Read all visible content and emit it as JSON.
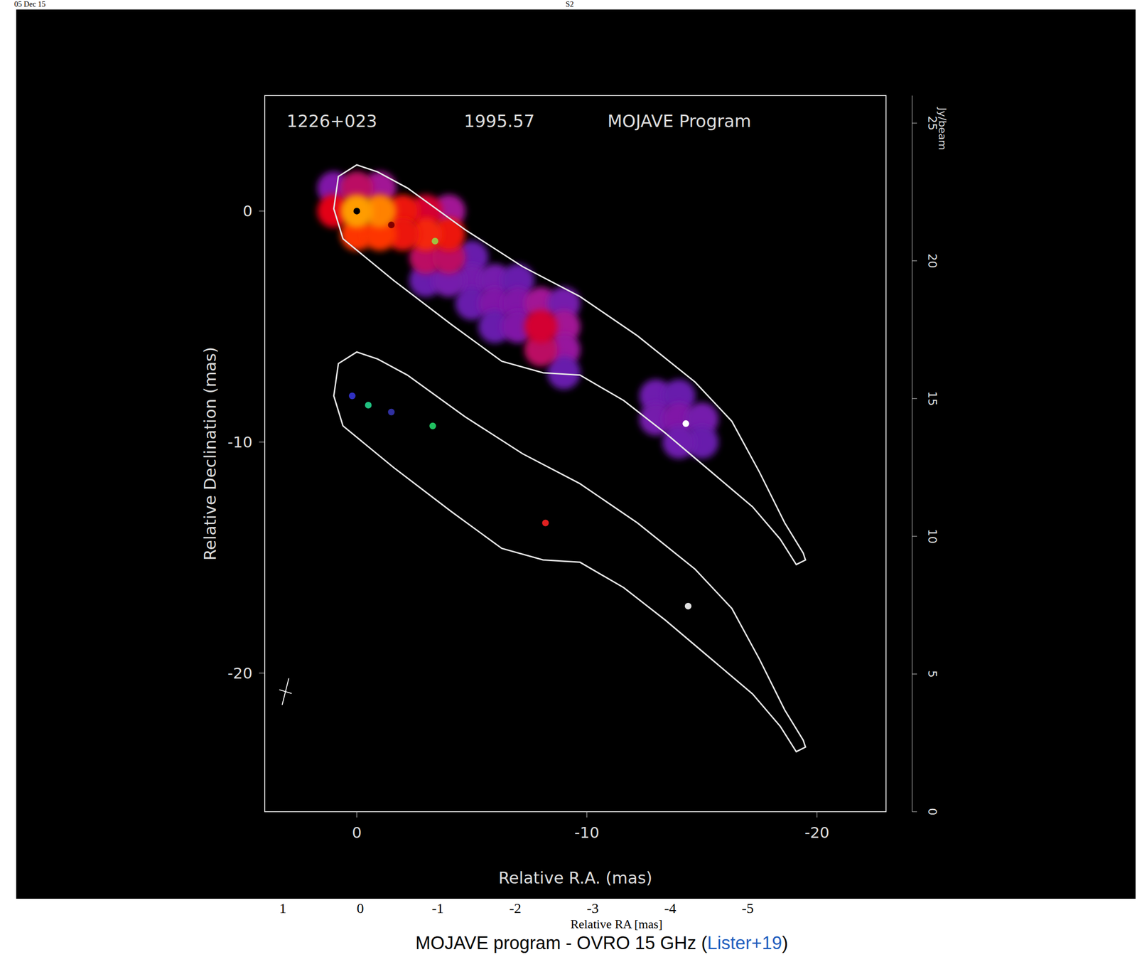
{
  "chart_data": {
    "type": "scatter",
    "title": "1226+023",
    "subtitle": "1995.57",
    "annotations": [
      "MOJAVE Program"
    ],
    "xlabel": "Relative R.A. (mas)",
    "ylabel": "Relative Declination (mas)",
    "xlim": [
      4,
      -23
    ],
    "xticks": [
      0,
      -10,
      -20
    ],
    "ylim": [
      -26,
      5
    ],
    "yticks": [
      -20,
      -10,
      0
    ],
    "grid": false,
    "emission": {
      "x": [
        -13,
        -14,
        -13,
        -14,
        -15,
        -15,
        -14,
        -5,
        -5,
        -5,
        -6,
        -6,
        -6,
        -7,
        -7,
        -7,
        -8,
        -9,
        -9,
        -9,
        -9,
        -8,
        -8,
        -3,
        -4,
        -4,
        -3,
        -3,
        -4,
        -4,
        -3,
        1,
        -1,
        0,
        1,
        -2,
        -2,
        0,
        -1,
        -1,
        0
      ],
      "y": [
        -8,
        -8,
        -9,
        -9,
        -9,
        -10,
        -10,
        -2,
        -3,
        -4,
        -3,
        -4,
        -5,
        -3,
        -4,
        -5,
        -4,
        -4,
        -5,
        -6,
        -7,
        -6,
        -5,
        -3,
        -3,
        0,
        0,
        -2,
        -2,
        -1,
        -1,
        1,
        1,
        1,
        0,
        0,
        -1,
        -1,
        -1,
        0,
        0
      ],
      "values": [
        0.35,
        0.3,
        0.4,
        0.5,
        0.4,
        0.3,
        0.35,
        0.3,
        0.4,
        0.3,
        0.4,
        0.5,
        0.3,
        0.3,
        0.5,
        0.5,
        0.8,
        0.4,
        0.8,
        0.7,
        0.3,
        1.0,
        1.2,
        0.3,
        0.4,
        0.8,
        1.2,
        1,
        1,
        2,
        2.5,
        0.5,
        0.8,
        1,
        1.5,
        2,
        2,
        3,
        3,
        5,
        6
      ]
    },
    "colorbar": {
      "label": "Jy/beam",
      "range": [
        0,
        26
      ],
      "ticks": [
        0,
        5,
        10,
        15,
        20,
        25
      ]
    },
    "contours": [
      {
        "x": [
          0.6,
          -1.6,
          -4.1,
          -6.3,
          -8.1,
          -9.7,
          -11.6,
          -13.4,
          -15.3,
          -17.2,
          -18.4,
          -19.1,
          -19.5,
          -19.4,
          -18.6,
          -17.5,
          -16.3,
          -14.7,
          -12.2,
          -9.7,
          -7.2,
          -4.7,
          -2.2,
          -0.9,
          0,
          0.8,
          1.0,
          0.6
        ],
        "y": [
          -1.2,
          -3.0,
          -4.9,
          -6.5,
          -7.0,
          -7.1,
          -8.2,
          -9.6,
          -11.2,
          -12.8,
          -14.2,
          -15.3,
          -15.1,
          -14.8,
          -13.5,
          -11.3,
          -9.1,
          -7.4,
          -5.4,
          -3.7,
          -2.4,
          -0.8,
          1.0,
          1.7,
          2.0,
          1.5,
          0.1,
          -1.2
        ]
      },
      {
        "x": [
          0.6,
          -1.6,
          -4.1,
          -6.3,
          -8.1,
          -9.7,
          -11.6,
          -13.4,
          -15.3,
          -17.2,
          -18.4,
          -19.1,
          -19.5,
          -19.4,
          -18.6,
          -17.5,
          -16.3,
          -14.7,
          -12.2,
          -9.7,
          -7.2,
          -4.7,
          -2.2,
          -0.9,
          0,
          0.8,
          1.0,
          0.6
        ],
        "y": [
          -9.3,
          -11.1,
          -13.0,
          -14.6,
          -15.1,
          -15.2,
          -16.3,
          -17.7,
          -19.3,
          -20.9,
          -22.3,
          -23.4,
          -23.2,
          -22.9,
          -21.6,
          -19.4,
          -17.2,
          -15.5,
          -13.5,
          -11.8,
          -10.5,
          -8.9,
          -7.1,
          -6.4,
          -6.1,
          -6.6,
          -8.0,
          -9.3
        ]
      }
    ],
    "components": {
      "x": [
        0,
        -1.5,
        -3.4,
        -14.3,
        0.2,
        -0.5,
        -1.5,
        -3.3,
        -8.2,
        -14.4
      ],
      "y": [
        0,
        -0.6,
        -1.3,
        -9.2,
        -8.0,
        -8.4,
        -8.7,
        -9.3,
        -13.5,
        -17.1
      ],
      "colors": [
        "#000000",
        "#800000",
        "#a0c040",
        "#ffffff",
        "#3030c0",
        "#20c080",
        "#3030a0",
        "#20c060",
        "#e02020",
        "#e0e0e0"
      ]
    },
    "beam": {
      "x": 3.1,
      "y": -20.8
    }
  },
  "background": {
    "texts": [
      "05 Dec 15",
      "S2"
    ],
    "axis": {
      "label": "Relative RA [mas]",
      "xticks": [
        1,
        0,
        -1,
        -2,
        -3,
        -4,
        -5
      ]
    },
    "caption": "MOJAVE program - OVRO 15 GHz (Lister+19)",
    "caption_link": "Lister+19"
  }
}
